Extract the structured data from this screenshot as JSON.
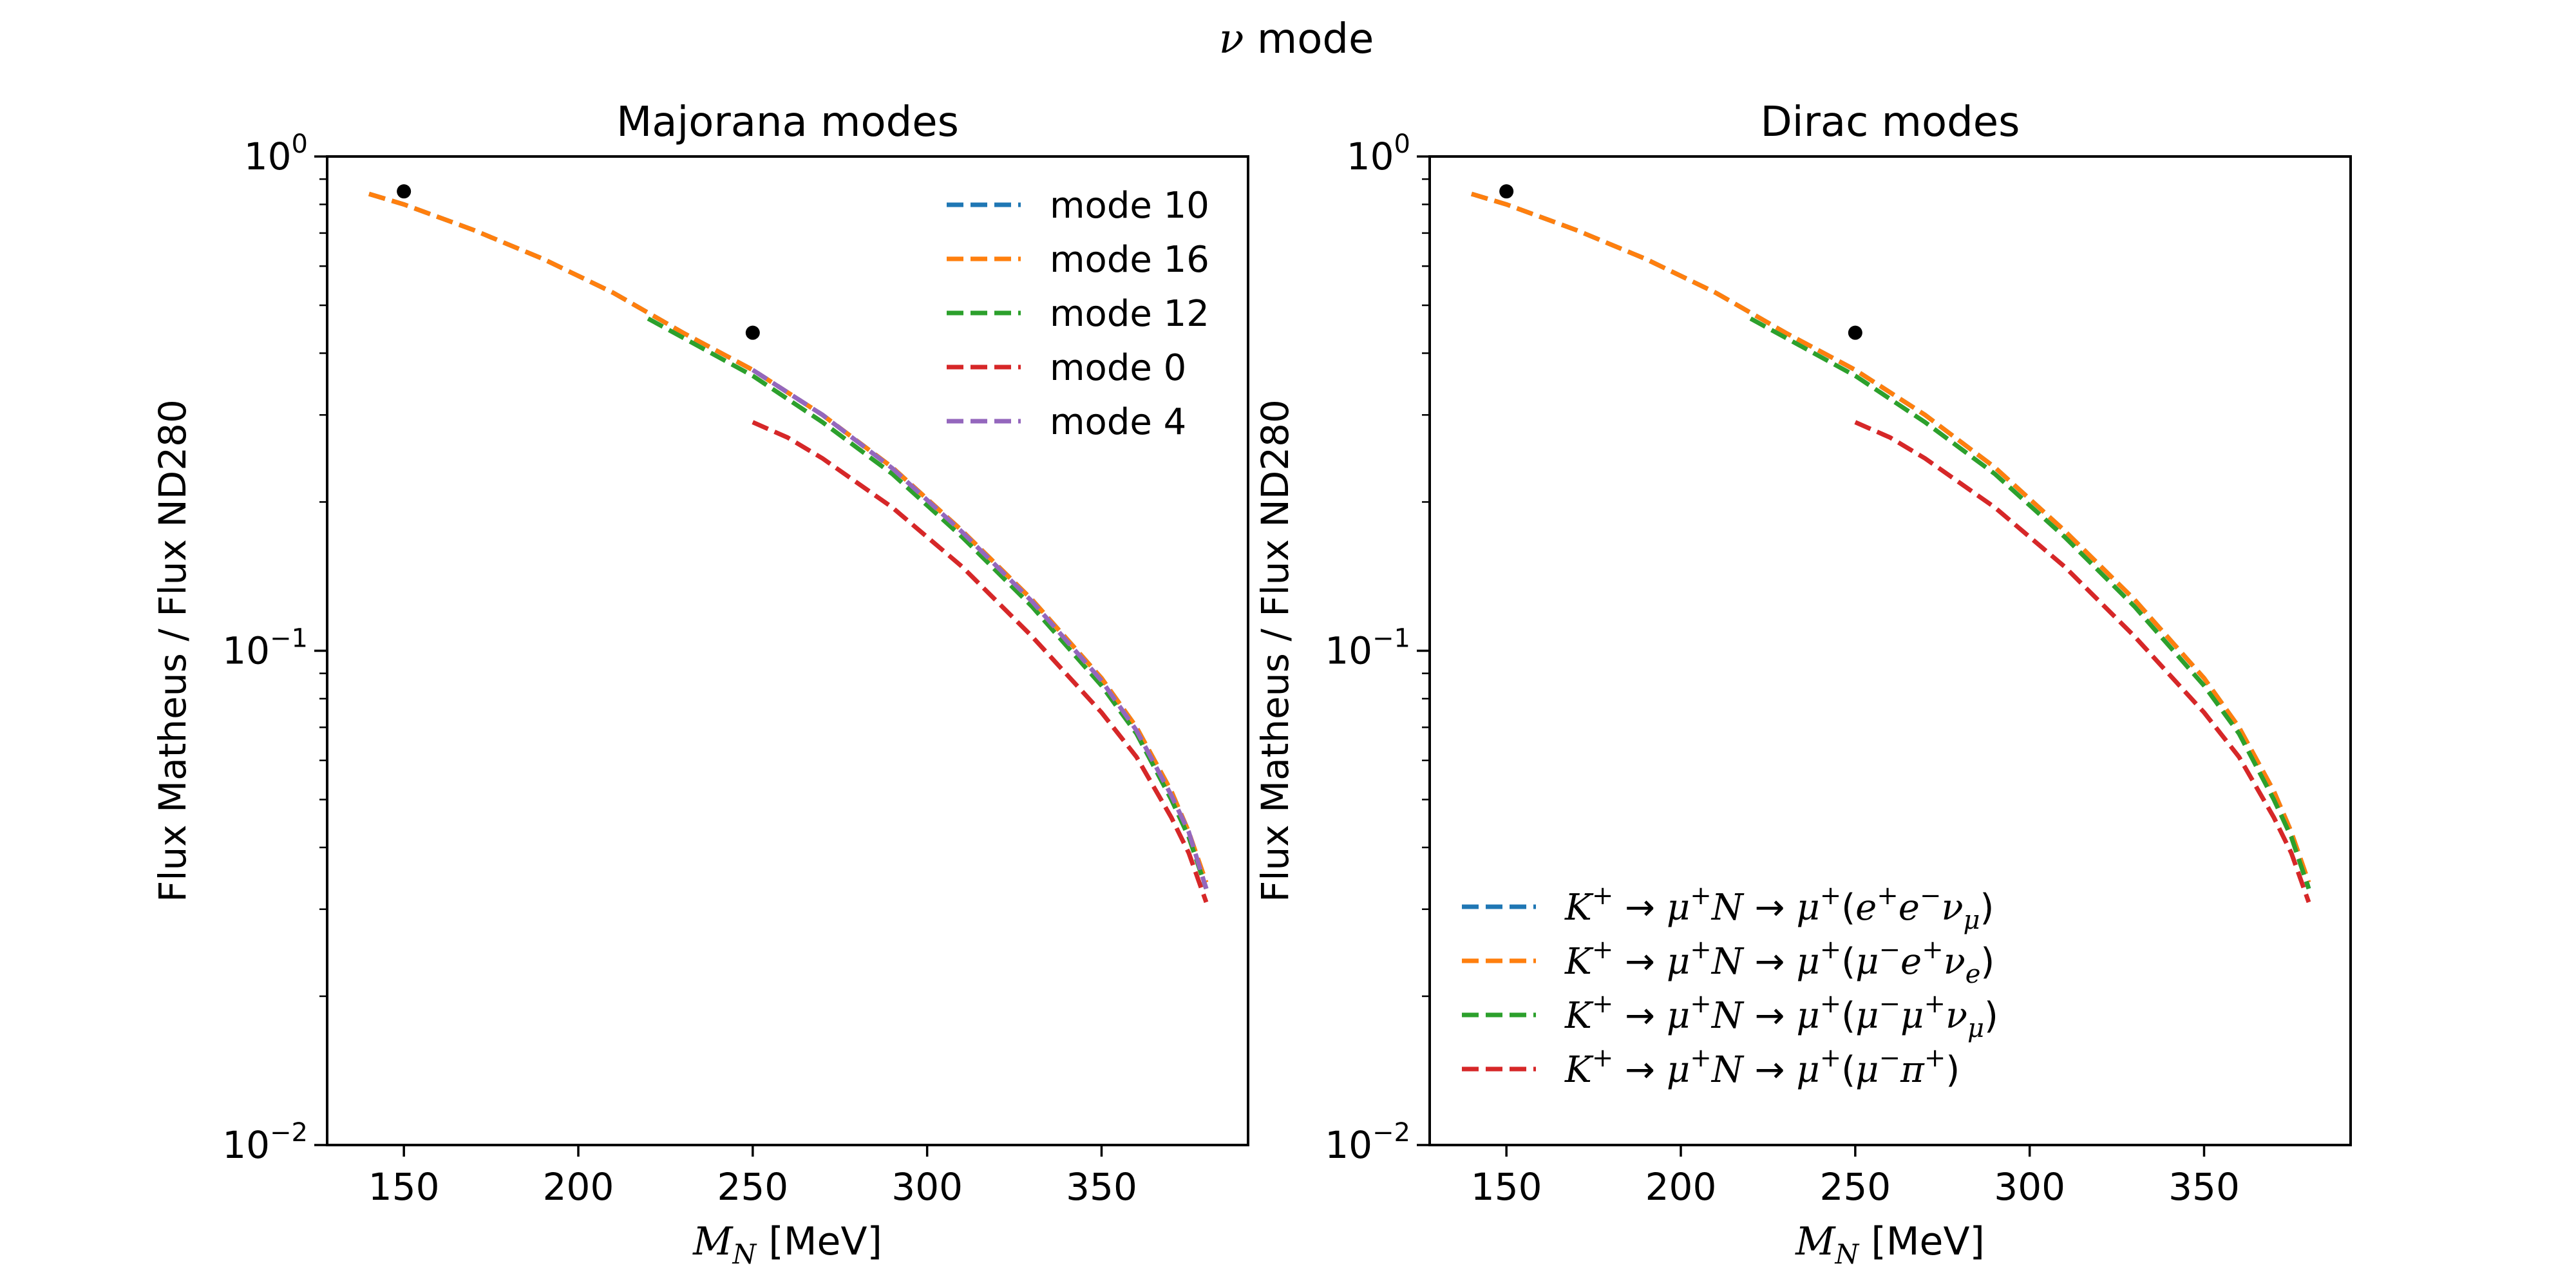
{
  "figure": {
    "suptitle": "ν mode"
  },
  "chart_data": [
    {
      "type": "line",
      "title": "Majorana modes",
      "xlabel": "M_N [MeV]",
      "ylabel": "Flux Matheus / Flux ND280",
      "xlim": [
        128,
        392
      ],
      "ylim": [
        0.01,
        1.0
      ],
      "yscale": "log",
      "x_ticks": [
        150,
        200,
        250,
        300,
        350
      ],
      "x_tick_labels": [
        "150",
        "200",
        "250",
        "300",
        "350"
      ],
      "y_ticks": [
        0.01,
        0.1,
        1.0
      ],
      "y_tick_labels": [
        {
          "base": "10",
          "exp": "−2"
        },
        {
          "base": "10",
          "exp": "−1"
        },
        {
          "base": "10",
          "exp": "0"
        }
      ],
      "grid": false,
      "legend_position": "upper right",
      "series": [
        {
          "name": "mode 10",
          "color": "#1f77b4",
          "style": "dashed",
          "x": [
            140,
            150,
            170,
            190,
            210,
            230,
            250,
            270,
            290,
            310,
            330,
            350,
            360,
            370,
            375,
            380
          ],
          "y": [
            0.84,
            0.8,
            0.71,
            0.62,
            0.53,
            0.44,
            0.37,
            0.3,
            0.235,
            0.175,
            0.127,
            0.088,
            0.07,
            0.052,
            0.043,
            0.033
          ]
        },
        {
          "name": "mode 16",
          "color": "#ff7f0e",
          "style": "dashed",
          "x": [
            140,
            150,
            170,
            190,
            210,
            230,
            250,
            270,
            290,
            310,
            330,
            350,
            360,
            370,
            375,
            380
          ],
          "y": [
            0.84,
            0.8,
            0.71,
            0.62,
            0.53,
            0.44,
            0.37,
            0.3,
            0.235,
            0.175,
            0.127,
            0.088,
            0.07,
            0.052,
            0.043,
            0.034
          ]
        },
        {
          "name": "mode 12",
          "color": "#2ca02c",
          "style": "dashed",
          "x": [
            220,
            230,
            250,
            270,
            290,
            310,
            330,
            350,
            360,
            370,
            375,
            380
          ],
          "y": [
            0.47,
            0.43,
            0.36,
            0.29,
            0.228,
            0.17,
            0.123,
            0.085,
            0.068,
            0.05,
            0.042,
            0.033
          ]
        },
        {
          "name": "mode 0",
          "color": "#d62728",
          "style": "dashed",
          "x": [
            250,
            260,
            270,
            290,
            310,
            330,
            350,
            360,
            370,
            375,
            380
          ],
          "y": [
            0.29,
            0.27,
            0.245,
            0.195,
            0.148,
            0.107,
            0.075,
            0.061,
            0.046,
            0.039,
            0.031
          ]
        },
        {
          "name": "mode 4",
          "color": "#9467bd",
          "style": "dashed",
          "x": [
            250,
            270,
            290,
            310,
            330,
            350,
            360,
            370,
            375,
            380
          ],
          "y": [
            0.37,
            0.3,
            0.234,
            0.174,
            0.126,
            0.087,
            0.069,
            0.051,
            0.043,
            0.033
          ]
        }
      ],
      "markers": {
        "color": "#000000",
        "x": [
          150,
          250
        ],
        "y": [
          0.85,
          0.44
        ]
      }
    },
    {
      "type": "line",
      "title": "Dirac modes",
      "xlabel": "M_N [MeV]",
      "ylabel": "Flux Matheus / Flux ND280",
      "xlim": [
        128,
        392
      ],
      "ylim": [
        0.01,
        1.0
      ],
      "yscale": "log",
      "x_ticks": [
        150,
        200,
        250,
        300,
        350
      ],
      "x_tick_labels": [
        "150",
        "200",
        "250",
        "300",
        "350"
      ],
      "y_ticks": [
        0.01,
        0.1,
        1.0
      ],
      "y_tick_labels": [
        {
          "base": "10",
          "exp": "−2"
        },
        {
          "base": "10",
          "exp": "−1"
        },
        {
          "base": "10",
          "exp": "0"
        }
      ],
      "grid": false,
      "legend_position": "lower left",
      "series": [
        {
          "name": "K⁺ → μ⁺N → μ⁺(e⁺e⁻ν_μ)",
          "color": "#1f77b4",
          "style": "dashed",
          "x": [
            140,
            150,
            170,
            190,
            210,
            230,
            250,
            270,
            290,
            310,
            330,
            350,
            360,
            370,
            375,
            380
          ],
          "y": [
            0.84,
            0.8,
            0.71,
            0.62,
            0.53,
            0.44,
            0.37,
            0.3,
            0.235,
            0.175,
            0.127,
            0.088,
            0.07,
            0.052,
            0.043,
            0.033
          ]
        },
        {
          "name": "K⁺ → μ⁺N → μ⁺(μ⁻e⁺ν_e)",
          "color": "#ff7f0e",
          "style": "dashed",
          "x": [
            140,
            150,
            170,
            190,
            210,
            230,
            250,
            270,
            290,
            310,
            330,
            350,
            360,
            370,
            375,
            380
          ],
          "y": [
            0.84,
            0.8,
            0.71,
            0.62,
            0.53,
            0.44,
            0.37,
            0.3,
            0.235,
            0.175,
            0.127,
            0.088,
            0.07,
            0.052,
            0.043,
            0.034
          ]
        },
        {
          "name": "K⁺ → μ⁺N → μ⁺(μ⁻μ⁺ν_μ)",
          "color": "#2ca02c",
          "style": "dashed",
          "x": [
            220,
            230,
            250,
            270,
            290,
            310,
            330,
            350,
            360,
            370,
            375,
            380
          ],
          "y": [
            0.47,
            0.43,
            0.36,
            0.29,
            0.228,
            0.17,
            0.123,
            0.085,
            0.068,
            0.05,
            0.042,
            0.033
          ]
        },
        {
          "name": "K⁺ → μ⁺N → μ⁺(μ⁻π⁺)",
          "color": "#d62728",
          "style": "dashed",
          "x": [
            250,
            260,
            270,
            290,
            310,
            330,
            350,
            360,
            370,
            375,
            380
          ],
          "y": [
            0.29,
            0.27,
            0.245,
            0.195,
            0.148,
            0.107,
            0.075,
            0.061,
            0.046,
            0.039,
            0.031
          ]
        }
      ],
      "markers": {
        "color": "#000000",
        "x": [
          150,
          250
        ],
        "y": [
          0.85,
          0.44
        ]
      }
    }
  ],
  "legend_math": {
    "majorana": [
      {
        "text": "mode 10"
      },
      {
        "text": "mode 16"
      },
      {
        "text": "mode 12"
      },
      {
        "text": "mode 0"
      },
      {
        "text": "mode 4"
      }
    ],
    "dirac": [
      {
        "parts": [
          [
            "K",
            "i"
          ],
          [
            "+",
            "sup"
          ],
          [
            " → ",
            "n"
          ],
          [
            "μ",
            "i"
          ],
          [
            "+",
            "sup"
          ],
          [
            "N",
            "i"
          ],
          [
            " → ",
            "n"
          ],
          [
            "μ",
            "i"
          ],
          [
            "+",
            "sup"
          ],
          [
            "(",
            "n"
          ],
          [
            "e",
            "i"
          ],
          [
            "+",
            "sup"
          ],
          [
            "e",
            "i"
          ],
          [
            "−",
            "sup"
          ],
          [
            "ν",
            "i"
          ],
          [
            "μ",
            "sub"
          ],
          [
            ")",
            "n"
          ]
        ]
      },
      {
        "parts": [
          [
            "K",
            "i"
          ],
          [
            "+",
            "sup"
          ],
          [
            " → ",
            "n"
          ],
          [
            "μ",
            "i"
          ],
          [
            "+",
            "sup"
          ],
          [
            "N",
            "i"
          ],
          [
            " → ",
            "n"
          ],
          [
            "μ",
            "i"
          ],
          [
            "+",
            "sup"
          ],
          [
            "(",
            "n"
          ],
          [
            "μ",
            "i"
          ],
          [
            "−",
            "sup"
          ],
          [
            "e",
            "i"
          ],
          [
            "+",
            "sup"
          ],
          [
            "ν",
            "i"
          ],
          [
            "e",
            "sub"
          ],
          [
            ")",
            "n"
          ]
        ]
      },
      {
        "parts": [
          [
            "K",
            "i"
          ],
          [
            "+",
            "sup"
          ],
          [
            " → ",
            "n"
          ],
          [
            "μ",
            "i"
          ],
          [
            "+",
            "sup"
          ],
          [
            "N",
            "i"
          ],
          [
            " → ",
            "n"
          ],
          [
            "μ",
            "i"
          ],
          [
            "+",
            "sup"
          ],
          [
            "(",
            "n"
          ],
          [
            "μ",
            "i"
          ],
          [
            "−",
            "sup"
          ],
          [
            "μ",
            "i"
          ],
          [
            "+",
            "sup"
          ],
          [
            "ν",
            "i"
          ],
          [
            "μ",
            "sub"
          ],
          [
            ")",
            "n"
          ]
        ]
      },
      {
        "parts": [
          [
            "K",
            "i"
          ],
          [
            "+",
            "sup"
          ],
          [
            " → ",
            "n"
          ],
          [
            "μ",
            "i"
          ],
          [
            "+",
            "sup"
          ],
          [
            "N",
            "i"
          ],
          [
            " → ",
            "n"
          ],
          [
            "μ",
            "i"
          ],
          [
            "+",
            "sup"
          ],
          [
            "(",
            "n"
          ],
          [
            "μ",
            "i"
          ],
          [
            "−",
            "sup"
          ],
          [
            "π",
            "i"
          ],
          [
            "+",
            "sup"
          ],
          [
            ")",
            "n"
          ]
        ]
      }
    ]
  }
}
